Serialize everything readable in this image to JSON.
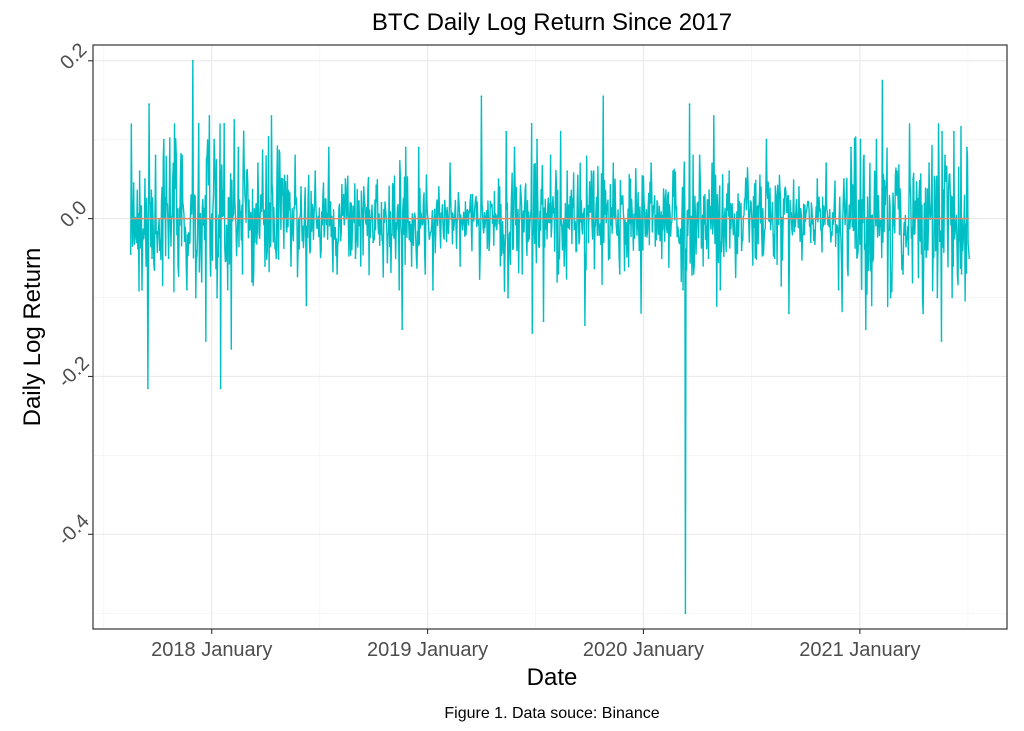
{
  "chart_data": {
    "type": "line",
    "title": "BTC Daily Log Return Since 2017",
    "xlabel": "Date",
    "ylabel": "Daily Log Return",
    "caption": "Figure 1. Data souce: Binance",
    "x_range": [
      "2017-08-17",
      "2021-07-05"
    ],
    "ylim": [
      -0.52,
      0.22
    ],
    "x_ticks": [
      {
        "date": "2018-01-01",
        "label": "2018 January"
      },
      {
        "date": "2019-01-01",
        "label": "2019 January"
      },
      {
        "date": "2020-01-01",
        "label": "2020 January"
      },
      {
        "date": "2021-01-01",
        "label": "2021 January"
      }
    ],
    "y_ticks": [
      {
        "value": 0.2,
        "label": "0.2"
      },
      {
        "value": 0.0,
        "label": "0.0"
      },
      {
        "value": -0.2,
        "label": "-0.2"
      },
      {
        "value": -0.4,
        "label": "-0.4"
      }
    ],
    "grid": true,
    "colors": {
      "series": "#00bfc4",
      "reference": "#e38970",
      "panel_border": "#333333"
    },
    "reference_line": {
      "y": 0.0
    },
    "series": [
      {
        "color": "#00bfc4",
        "points": [
          [
            "2017-08-17",
            -0.045
          ],
          [
            "2017-08-22",
            0.045
          ],
          [
            "2017-08-27",
            -0.03
          ],
          [
            "2017-09-01",
            0.06
          ],
          [
            "2017-09-05",
            -0.09
          ],
          [
            "2017-09-10",
            0.05
          ],
          [
            "2017-09-12",
            -0.06
          ],
          [
            "2017-09-15",
            -0.215
          ],
          [
            "2017-09-17",
            0.145
          ],
          [
            "2017-09-22",
            -0.05
          ],
          [
            "2017-09-28",
            0.08
          ],
          [
            "2017-10-05",
            -0.04
          ],
          [
            "2017-10-12",
            0.1
          ],
          [
            "2017-10-20",
            -0.05
          ],
          [
            "2017-10-28",
            0.07
          ],
          [
            "2017-11-05",
            -0.06
          ],
          [
            "2017-11-12",
            0.08
          ],
          [
            "2017-11-20",
            -0.09
          ],
          [
            "2017-11-30",
            0.2
          ],
          [
            "2017-12-05",
            -0.1
          ],
          [
            "2017-12-10",
            0.12
          ],
          [
            "2017-12-15",
            -0.08
          ],
          [
            "2017-12-22",
            -0.155
          ],
          [
            "2017-12-28",
            0.13
          ],
          [
            "2018-01-05",
            0.1
          ],
          [
            "2018-01-10",
            -0.1
          ],
          [
            "2018-01-16",
            -0.215
          ],
          [
            "2018-01-22",
            0.12
          ],
          [
            "2018-01-28",
            -0.09
          ],
          [
            "2018-02-03",
            -0.165
          ],
          [
            "2018-02-08",
            0.125
          ],
          [
            "2018-02-15",
            0.09
          ],
          [
            "2018-02-22",
            -0.07
          ],
          [
            "2018-03-01",
            0.06
          ],
          [
            "2018-03-10",
            -0.08
          ],
          [
            "2018-03-20",
            0.07
          ],
          [
            "2018-04-01",
            -0.06
          ],
          [
            "2018-04-12",
            0.13
          ],
          [
            "2018-04-20",
            -0.05
          ],
          [
            "2018-05-01",
            0.05
          ],
          [
            "2018-05-15",
            -0.06
          ],
          [
            "2018-06-01",
            0.04
          ],
          [
            "2018-06-10",
            -0.11
          ],
          [
            "2018-06-25",
            0.06
          ],
          [
            "2018-07-05",
            -0.04
          ],
          [
            "2018-07-18",
            0.09
          ],
          [
            "2018-08-01",
            -0.07
          ],
          [
            "2018-08-15",
            0.05
          ],
          [
            "2018-09-01",
            -0.05
          ],
          [
            "2018-09-15",
            0.04
          ],
          [
            "2018-10-01",
            -0.03
          ],
          [
            "2018-10-15",
            0.02
          ],
          [
            "2018-11-01",
            -0.02
          ],
          [
            "2018-11-14",
            -0.09
          ],
          [
            "2018-11-19",
            -0.14
          ],
          [
            "2018-11-25",
            0.09
          ],
          [
            "2018-12-05",
            -0.06
          ],
          [
            "2018-12-17",
            0.09
          ],
          [
            "2018-12-28",
            -0.07
          ],
          [
            "2019-01-10",
            -0.09
          ],
          [
            "2019-01-20",
            0.04
          ],
          [
            "2019-02-08",
            0.07
          ],
          [
            "2019-02-25",
            -0.06
          ],
          [
            "2019-03-15",
            0.03
          ],
          [
            "2019-04-02",
            0.155
          ],
          [
            "2019-04-15",
            -0.04
          ],
          [
            "2019-05-01",
            0.05
          ],
          [
            "2019-05-14",
            0.11
          ],
          [
            "2019-05-17",
            -0.1
          ],
          [
            "2019-05-28",
            0.09
          ],
          [
            "2019-06-10",
            -0.07
          ],
          [
            "2019-06-26",
            0.12
          ],
          [
            "2019-06-27",
            -0.145
          ],
          [
            "2019-07-05",
            0.1
          ],
          [
            "2019-07-16",
            -0.13
          ],
          [
            "2019-07-28",
            0.08
          ],
          [
            "2019-08-10",
            -0.07
          ],
          [
            "2019-08-25",
            0.06
          ],
          [
            "2019-09-10",
            -0.04
          ],
          [
            "2019-09-24",
            -0.135
          ],
          [
            "2019-10-05",
            0.06
          ],
          [
            "2019-10-25",
            0.155
          ],
          [
            "2019-11-05",
            -0.05
          ],
          [
            "2019-11-22",
            -0.07
          ],
          [
            "2019-12-10",
            0.05
          ],
          [
            "2019-12-25",
            -0.04
          ],
          [
            "2020-01-14",
            0.07
          ],
          [
            "2020-02-01",
            -0.05
          ],
          [
            "2020-02-20",
            0.06
          ],
          [
            "2020-03-08",
            -0.09
          ],
          [
            "2020-03-12",
            -0.5
          ],
          [
            "2020-03-19",
            0.145
          ],
          [
            "2020-03-26",
            -0.07
          ],
          [
            "2020-04-05",
            0.08
          ],
          [
            "2020-04-20",
            -0.05
          ],
          [
            "2020-04-29",
            0.13
          ],
          [
            "2020-05-10",
            -0.09
          ],
          [
            "2020-05-25",
            0.06
          ],
          [
            "2020-06-15",
            -0.04
          ],
          [
            "2020-07-01",
            0.02
          ],
          [
            "2020-07-27",
            0.1
          ],
          [
            "2020-08-10",
            -0.05
          ],
          [
            "2020-09-03",
            -0.12
          ],
          [
            "2020-09-20",
            0.04
          ],
          [
            "2020-10-10",
            -0.03
          ],
          [
            "2020-10-21",
            0.05
          ],
          [
            "2020-11-05",
            0.07
          ],
          [
            "2020-11-26",
            -0.09
          ],
          [
            "2020-12-05",
            0.05
          ],
          [
            "2020-12-17",
            0.09
          ],
          [
            "2021-01-02",
            0.1
          ],
          [
            "2021-01-08",
            0.08
          ],
          [
            "2021-01-11",
            -0.14
          ],
          [
            "2021-01-21",
            -0.11
          ],
          [
            "2021-01-29",
            0.1
          ],
          [
            "2021-02-08",
            0.175
          ],
          [
            "2021-02-22",
            -0.1
          ],
          [
            "2021-03-05",
            0.06
          ],
          [
            "2021-03-15",
            -0.07
          ],
          [
            "2021-04-01",
            0.05
          ],
          [
            "2021-04-18",
            -0.12
          ],
          [
            "2021-04-28",
            0.07
          ],
          [
            "2021-05-12",
            -0.1
          ],
          [
            "2021-05-19",
            -0.155
          ],
          [
            "2021-05-20",
            0.11
          ],
          [
            "2021-05-25",
            0.08
          ],
          [
            "2021-06-08",
            -0.06
          ],
          [
            "2021-06-09",
            0.11
          ],
          [
            "2021-06-22",
            -0.07
          ],
          [
            "2021-07-01",
            0.09
          ],
          [
            "2021-07-05",
            -0.05
          ]
        ]
      }
    ]
  }
}
